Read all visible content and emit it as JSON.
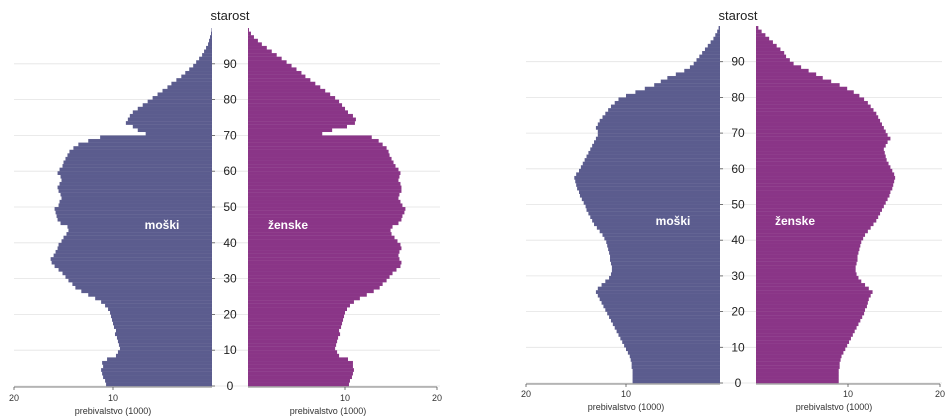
{
  "chart_data": [
    {
      "type": "bar",
      "subtype": "population-pyramid",
      "title": "",
      "y_axis_title": "starost",
      "x_axis_title": "prebivalstvo (1000)",
      "y_ticks": [
        "0",
        "10",
        "20",
        "30",
        "40",
        "50",
        "60",
        "70",
        "80",
        "90"
      ],
      "x_ticks": [
        "20",
        "10",
        "10",
        "20"
      ],
      "male_label": "moški",
      "female_label": "ženske",
      "colors": {
        "male": "#5b5c8e",
        "female": "#8a3587"
      },
      "xlim": [
        0,
        20
      ],
      "ages": [
        0,
        1,
        2,
        3,
        4,
        5,
        6,
        7,
        8,
        9,
        10,
        11,
        12,
        13,
        14,
        15,
        16,
        17,
        18,
        19,
        20,
        21,
        22,
        23,
        24,
        25,
        26,
        27,
        28,
        29,
        30,
        31,
        32,
        33,
        34,
        35,
        36,
        37,
        38,
        39,
        40,
        41,
        42,
        43,
        44,
        45,
        46,
        47,
        48,
        49,
        50,
        51,
        52,
        53,
        54,
        55,
        56,
        57,
        58,
        59,
        60,
        61,
        62,
        63,
        64,
        65,
        66,
        67,
        68,
        69,
        70,
        71,
        72,
        73,
        74,
        75,
        76,
        77,
        78,
        79,
        80,
        81,
        82,
        83,
        84,
        85,
        86,
        87,
        88,
        89,
        90,
        91,
        92,
        93,
        94,
        95,
        96,
        97,
        98,
        99
      ],
      "series": [
        {
          "name": "moški",
          "values": [
            10.7,
            10.8,
            11.0,
            11.1,
            11.2,
            11.0,
            11.1,
            10.6,
            9.7,
            9.5,
            9.3,
            9.4,
            9.5,
            9.6,
            9.8,
            9.7,
            9.9,
            10.0,
            10.1,
            10.2,
            10.3,
            10.5,
            10.8,
            11.2,
            11.8,
            12.5,
            13.2,
            13.8,
            14.1,
            14.5,
            14.8,
            15.1,
            15.5,
            15.9,
            16.2,
            16.3,
            16.0,
            15.8,
            15.6,
            15.5,
            15.2,
            15.0,
            14.7,
            14.5,
            14.6,
            15.3,
            15.6,
            15.7,
            15.8,
            15.9,
            15.5,
            15.4,
            15.2,
            15.3,
            15.5,
            15.6,
            15.4,
            15.2,
            15.3,
            15.6,
            15.4,
            15.1,
            15.0,
            14.8,
            14.6,
            14.4,
            14.0,
            13.5,
            12.5,
            11.3,
            6.7,
            7.5,
            8.0,
            8.7,
            8.5,
            8.3,
            8.0,
            7.5,
            7.0,
            6.5,
            6.0,
            5.5,
            5.0,
            4.5,
            4.1,
            3.6,
            3.1,
            2.7,
            2.3,
            1.9,
            1.6,
            1.3,
            1.0,
            0.8,
            0.6,
            0.4,
            0.3,
            0.2,
            0.1,
            0.05
          ]
        },
        {
          "name": "ženske",
          "values": [
            10.2,
            10.3,
            10.5,
            10.6,
            10.7,
            10.6,
            10.6,
            10.1,
            9.2,
            9.0,
            8.8,
            8.9,
            9.0,
            9.1,
            9.3,
            9.2,
            9.4,
            9.5,
            9.6,
            9.7,
            9.8,
            10.0,
            10.3,
            10.7,
            11.3,
            12.0,
            12.7,
            13.3,
            13.6,
            14.0,
            14.3,
            14.6,
            15.0,
            15.4,
            15.5,
            15.3,
            15.2,
            15.3,
            15.5,
            15.4,
            15.1,
            14.8,
            14.5,
            14.4,
            14.6,
            15.2,
            15.5,
            15.6,
            15.8,
            15.9,
            15.6,
            15.4,
            15.2,
            15.3,
            15.5,
            15.5,
            15.4,
            15.2,
            15.3,
            15.4,
            15.2,
            14.9,
            14.7,
            14.5,
            14.3,
            14.2,
            14.0,
            13.6,
            13.2,
            12.5,
            7.5,
            8.5,
            10.0,
            10.8,
            10.9,
            10.6,
            10.1,
            9.8,
            9.5,
            9.2,
            8.8,
            8.3,
            7.8,
            7.3,
            6.8,
            6.3,
            5.8,
            5.4,
            4.9,
            4.4,
            3.9,
            3.4,
            2.9,
            2.4,
            1.9,
            1.4,
            1.0,
            0.6,
            0.3,
            0.1
          ]
        }
      ]
    },
    {
      "type": "bar",
      "subtype": "population-pyramid",
      "title": "",
      "y_axis_title": "starost",
      "x_axis_title": "prebivalstvo (1000)",
      "y_ticks": [
        "0",
        "10",
        "20",
        "30",
        "40",
        "50",
        "60",
        "70",
        "80",
        "90"
      ],
      "x_ticks": [
        "20",
        "10",
        "10",
        "20"
      ],
      "male_label": "moški",
      "female_label": "ženske",
      "colors": {
        "male": "#5b5c8e",
        "female": "#8a3587"
      },
      "xlim": [
        0,
        20
      ],
      "ages": [
        0,
        1,
        2,
        3,
        4,
        5,
        6,
        7,
        8,
        9,
        10,
        11,
        12,
        13,
        14,
        15,
        16,
        17,
        18,
        19,
        20,
        21,
        22,
        23,
        24,
        25,
        26,
        27,
        28,
        29,
        30,
        31,
        32,
        33,
        34,
        35,
        36,
        37,
        38,
        39,
        40,
        41,
        42,
        43,
        44,
        45,
        46,
        47,
        48,
        49,
        50,
        51,
        52,
        53,
        54,
        55,
        56,
        57,
        58,
        59,
        60,
        61,
        62,
        63,
        64,
        65,
        66,
        67,
        68,
        69,
        70,
        71,
        72,
        73,
        74,
        75,
        76,
        77,
        78,
        79,
        80,
        81,
        82,
        83,
        84,
        85,
        86,
        87,
        88,
        89,
        90,
        91,
        92,
        93,
        94,
        95,
        96,
        97,
        98,
        99
      ],
      "series": [
        {
          "name": "moški",
          "values": [
            9.3,
            9.3,
            9.3,
            9.3,
            9.4,
            9.4,
            9.5,
            9.6,
            9.8,
            10.0,
            10.2,
            10.4,
            10.6,
            10.8,
            11.0,
            11.2,
            11.4,
            11.6,
            11.8,
            12.0,
            12.2,
            12.4,
            12.6,
            12.8,
            13.0,
            13.2,
            13.0,
            12.6,
            12.2,
            11.8,
            11.6,
            11.5,
            11.5,
            11.6,
            11.7,
            11.7,
            11.8,
            11.9,
            12.0,
            12.1,
            12.3,
            12.5,
            12.8,
            13.1,
            13.4,
            13.6,
            13.8,
            14.0,
            14.2,
            14.3,
            14.5,
            14.7,
            14.9,
            15.0,
            15.2,
            15.3,
            15.4,
            15.5,
            15.3,
            15.0,
            14.8,
            14.6,
            14.4,
            14.2,
            14.0,
            13.8,
            13.6,
            13.4,
            13.2,
            13.0,
            13.0,
            13.2,
            13.0,
            12.8,
            12.5,
            12.2,
            11.9,
            11.6,
            11.2,
            10.8,
            10.0,
            9.0,
            8.0,
            7.0,
            6.3,
            5.6,
            4.7,
            3.8,
            3.2,
            2.8,
            2.5,
            2.2,
            1.9,
            1.6,
            1.3,
            1.0,
            0.7,
            0.5,
            0.3,
            0.15
          ]
        },
        {
          "name": "ženske",
          "values": [
            8.8,
            8.8,
            8.8,
            8.8,
            8.9,
            8.9,
            9.0,
            9.1,
            9.3,
            9.5,
            9.7,
            9.9,
            10.1,
            10.3,
            10.5,
            10.7,
            10.9,
            11.1,
            11.3,
            11.5,
            11.6,
            11.8,
            11.9,
            12.0,
            12.2,
            12.4,
            12.0,
            11.6,
            11.2,
            10.9,
            10.7,
            10.6,
            10.6,
            10.7,
            10.8,
            10.8,
            10.9,
            11.0,
            11.1,
            11.2,
            11.4,
            11.6,
            11.9,
            12.2,
            12.5,
            12.8,
            13.0,
            13.2,
            13.4,
            13.6,
            13.8,
            14.0,
            14.2,
            14.3,
            14.5,
            14.6,
            14.7,
            14.8,
            14.7,
            14.5,
            14.3,
            14.1,
            13.9,
            13.8,
            13.7,
            13.6,
            13.8,
            14.0,
            14.3,
            14.0,
            13.8,
            13.6,
            13.4,
            13.2,
            13.0,
            12.8,
            12.5,
            12.2,
            11.9,
            11.5,
            11.0,
            10.4,
            9.7,
            8.9,
            8.0,
            7.1,
            6.4,
            5.6,
            4.8,
            4.0,
            3.6,
            3.2,
            3.0,
            2.6,
            2.2,
            1.8,
            1.4,
            1.0,
            0.6,
            0.25
          ]
        }
      ]
    }
  ]
}
